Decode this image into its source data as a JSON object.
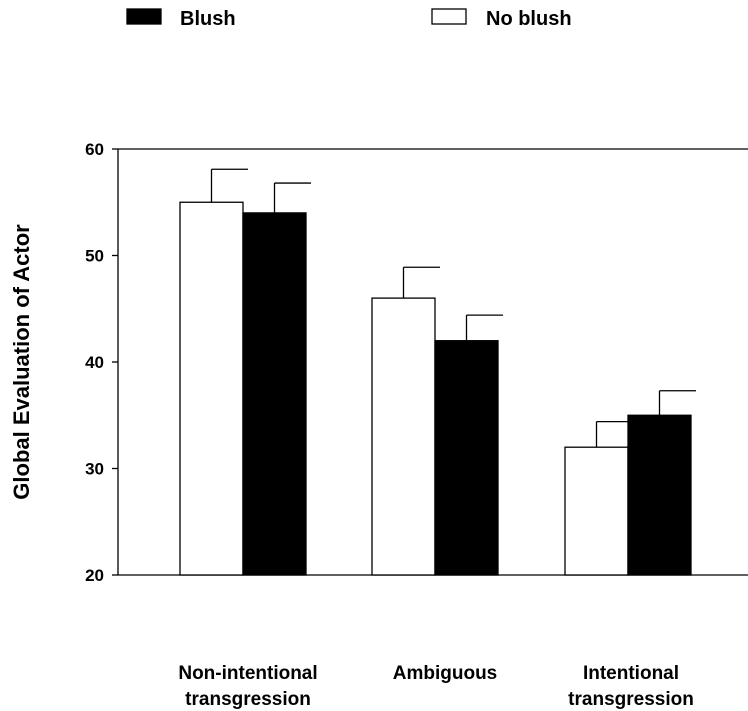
{
  "chart_data": {
    "type": "bar",
    "title": "",
    "xlabel": "",
    "ylabel": "Global Evaluation of Actor",
    "ylim": [
      20,
      60
    ],
    "yticks": [
      20,
      30,
      40,
      50,
      60
    ],
    "grid": false,
    "legend_position": "top",
    "categories": [
      [
        "Non-intentional",
        "transgression"
      ],
      [
        "Ambiguous"
      ],
      [
        "Intentional",
        "transgression"
      ]
    ],
    "series": [
      {
        "name": "No blush",
        "color": "#ffffff",
        "values": [
          55,
          46,
          32
        ],
        "error": [
          3.1,
          2.9,
          2.4
        ]
      },
      {
        "name": "Blush",
        "color": "#000000",
        "values": [
          54,
          42,
          35
        ],
        "error": [
          2.8,
          2.4,
          2.3
        ]
      }
    ],
    "legend_order": [
      "Blush",
      "No blush"
    ]
  }
}
